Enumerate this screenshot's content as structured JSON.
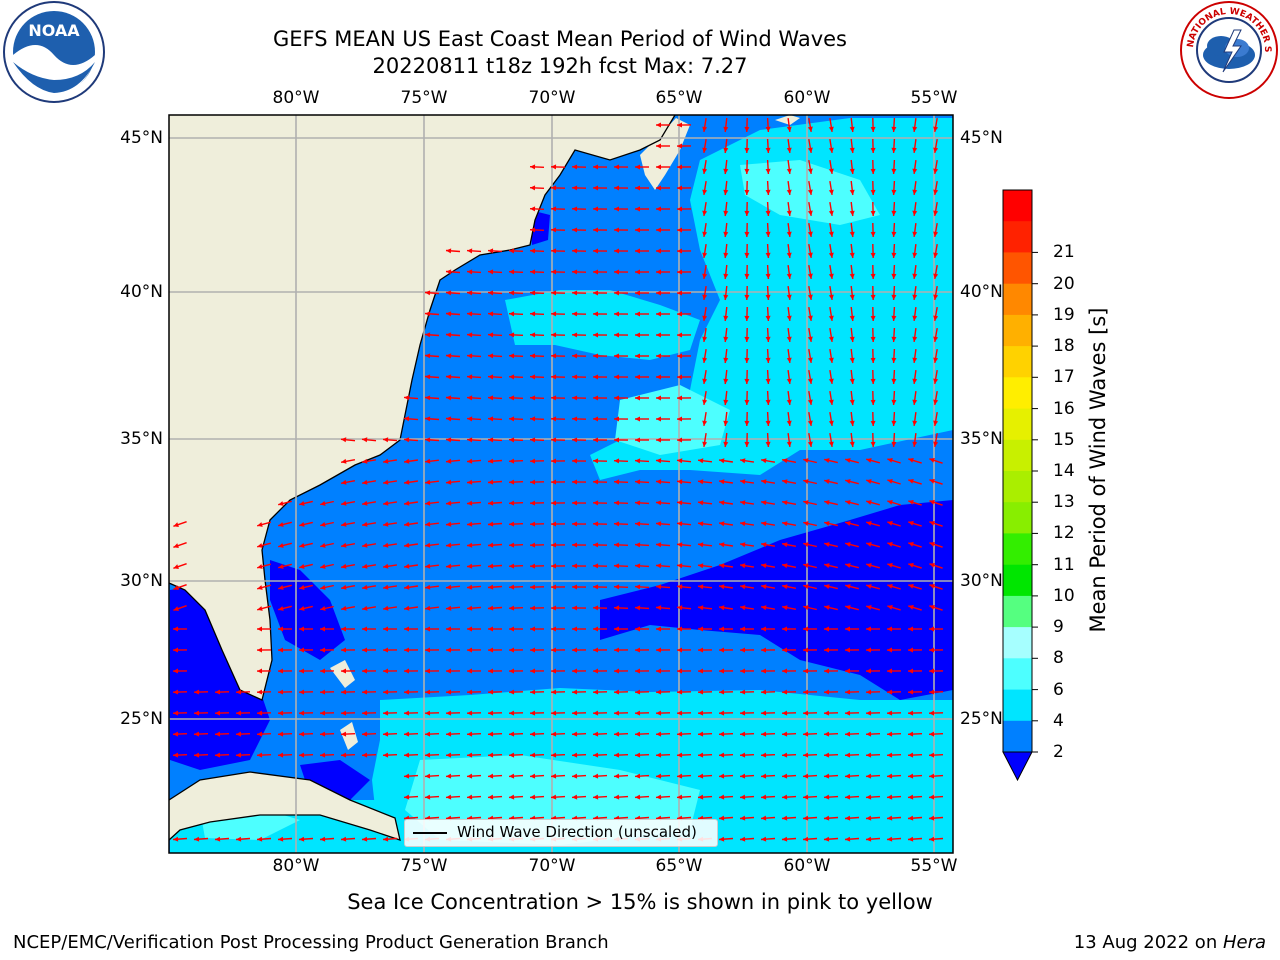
{
  "title": {
    "line1": "GEFS MEAN US East Coast Mean Period of Wind Waves",
    "line2": "20220811 t18z 192h fcst   Max: 7.27"
  },
  "axes": {
    "lon_labels": [
      "80°W",
      "75°W",
      "70°W",
      "65°W",
      "60°W",
      "55°W"
    ],
    "lat_labels": [
      "45°N",
      "40°N",
      "35°N",
      "30°N",
      "25°N"
    ],
    "lon_values": [
      -80,
      -75,
      -70,
      -65,
      -60,
      -55
    ],
    "lat_values": [
      45,
      40,
      35,
      30,
      25
    ],
    "lon_range": [
      -85,
      -54.2
    ],
    "lat_range": [
      20.3,
      46
    ]
  },
  "colorbar": {
    "label": "Mean Period of Wind Waves [s]",
    "ticks": [
      "2",
      "4",
      "6",
      "8",
      "9",
      "10",
      "11",
      "12",
      "13",
      "14",
      "15",
      "16",
      "17",
      "18",
      "19",
      "20",
      "21"
    ],
    "levels": [
      2,
      4,
      6,
      8,
      9,
      10,
      11,
      12,
      13,
      14,
      15,
      16,
      17,
      18,
      19,
      20,
      21
    ],
    "colors": [
      "#0080ff",
      "#00e5ff",
      "#4dffff",
      "#a6ffff",
      "#55ff80",
      "#00e600",
      "#33ee00",
      "#88ee00",
      "#aaee00",
      "#c8f000",
      "#e6f000",
      "#ffee00",
      "#ffd200",
      "#ffb000",
      "#ff8800",
      "#ff5500",
      "#ff2200",
      "#ff0000"
    ],
    "under_color": "#0000ff"
  },
  "legend": {
    "label": "Wind Wave Direction (unscaled)"
  },
  "subcaption": "Sea Ice Concentration > 15% is shown in pink to yellow",
  "footer": {
    "left": "NCEP/EMC/Verification Post Processing Product Generation Branch",
    "date": "13 Aug 2022 on ",
    "machine": "Hera"
  },
  "logos": {
    "noaa": {
      "text": "NOAA",
      "icon": "noaa-logo-icon"
    },
    "nws": {
      "text": "NATIONAL WEATHER SERVICE",
      "icon": "nws-logo-icon"
    }
  },
  "map": {
    "land_color": "#efeedb",
    "ocean_base": "#0080ff",
    "arrow_color": "#ff0000",
    "grid_color": "#b0b0b0"
  }
}
